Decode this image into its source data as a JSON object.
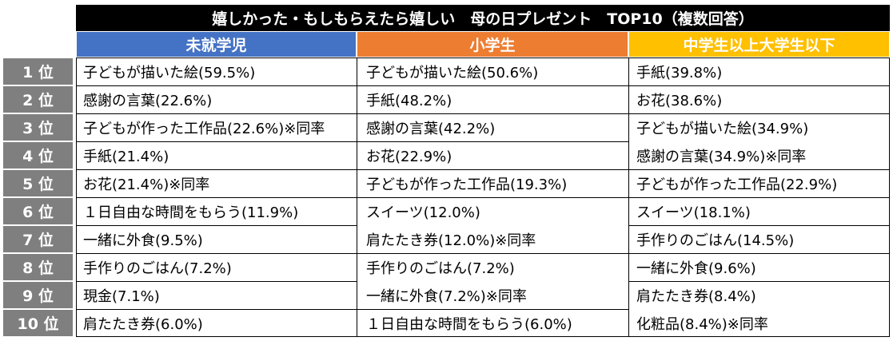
{
  "title": "嬉しかった・もしもらえたら嬉しい　母の日プレゼント　TOP10（複数回答）",
  "columns": {
    "preschool": "未就学児",
    "elementary": "小学生",
    "middle_to_university": "中学生以上大学生以下"
  },
  "ranks": [
    "1 位",
    "2 位",
    "3 位",
    "4 位",
    "5 位",
    "6 位",
    "7 位",
    "8 位",
    "9 位",
    "10 位"
  ],
  "preschool": [
    "子どもが描いた絵(59.5%)",
    "感謝の言葉(22.6%)",
    "子どもが作った工作品(22.6%)※同率",
    "手紙(21.4%)",
    "お花(21.4%)※同率",
    "１日自由な時間をもらう(11.9%)",
    "一緒に外食(9.5%)",
    "手作りのごはん(7.2%)",
    "現金(7.1%)",
    "肩たたき券(6.0%)"
  ],
  "elementary": [
    "子どもが描いた絵(50.6%)",
    "手紙(48.2%)",
    "感謝の言葉(42.2%)",
    "お花(22.9%)",
    "子どもが作った工作品(19.3%)",
    "スイーツ(12.0%)",
    "肩たたき券(12.0%)※同率",
    "手作りのごはん(7.2%)",
    "一緒に外食(7.2%)※同率",
    "１日自由な時間をもらう(6.0%)"
  ],
  "middle_to_university": [
    "手紙(39.8%)",
    "お花(38.6%)",
    "子どもが描いた絵(34.9%)",
    "感謝の言葉(34.9%)※同率",
    "子どもが作った工作品(22.9%)",
    "スイーツ(18.1%)",
    "手作りのごはん(14.5%)",
    "一緒に外食(9.6%)",
    "肩たたき券(8.4%)",
    "化粧品(8.4%)※同率"
  ]
}
